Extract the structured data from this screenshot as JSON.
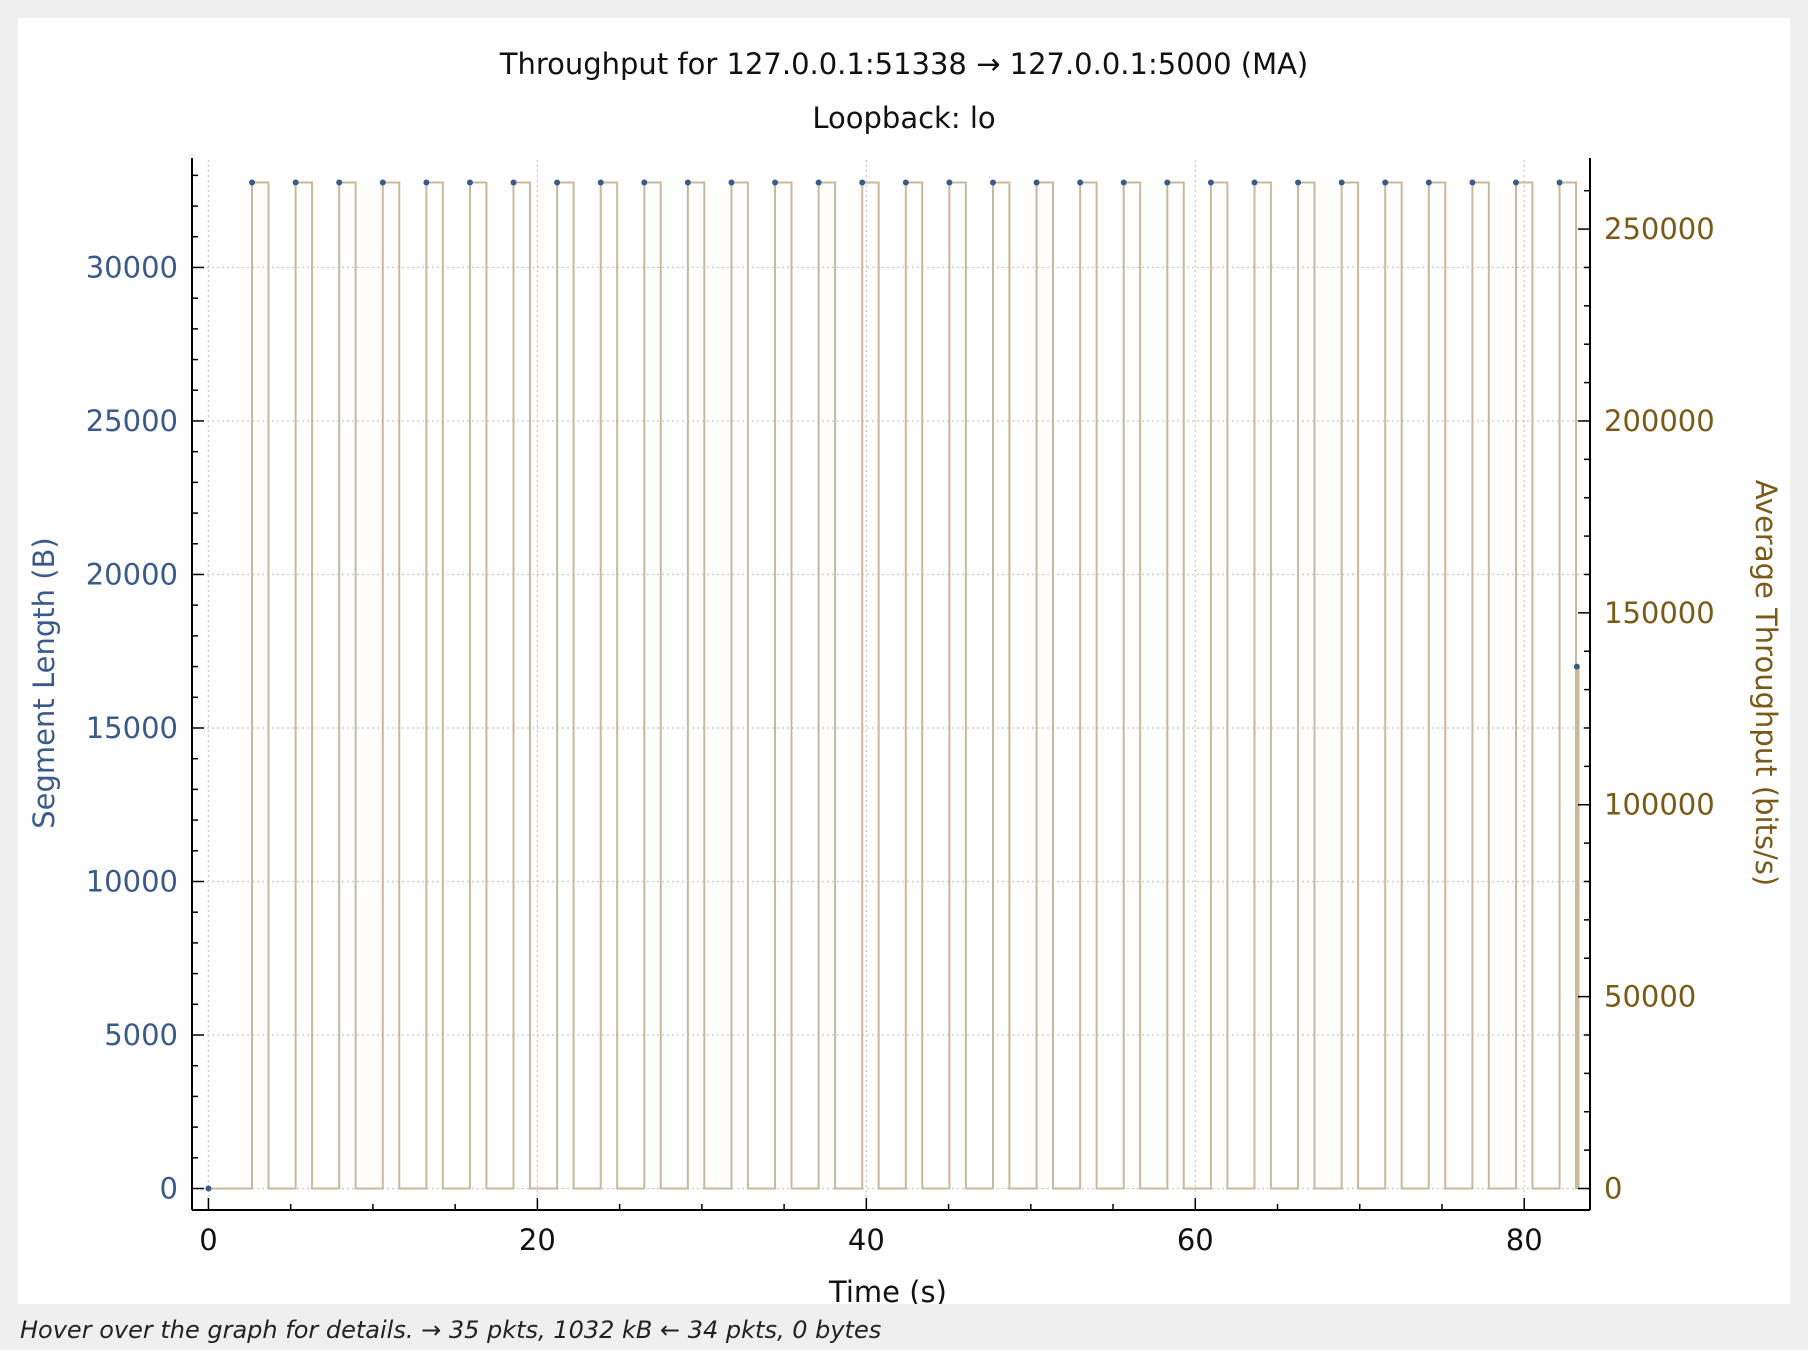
{
  "colors": {
    "segment_series": "#3b5a8c",
    "throughput_series": "#c8b99a",
    "right_axis": "#7a5a17",
    "grid": "#c8c8c8"
  },
  "status": {
    "text": "Hover over the graph for details. → 35 pkts, 1032 kB ← 34 pkts, 0 bytes"
  },
  "chart_data": {
    "type": "line",
    "title": "Throughput for 127.0.0.1:51338 → 127.0.0.1:5000 (MA)",
    "subtitle": "Loopback: lo",
    "xlabel": "Time (s)",
    "ylabel": "Segment Length (B)",
    "ylabel_right": "Average Throughput (bits/s)",
    "xlim": [
      -1,
      84
    ],
    "ylim": [
      -700,
      33500
    ],
    "ylim_right": [
      -5600,
      268000
    ],
    "x_ticks": [
      0,
      20,
      40,
      60,
      80
    ],
    "y_ticks": [
      0,
      5000,
      10000,
      15000,
      20000,
      25000,
      30000
    ],
    "y_ticks_right": [
      0,
      50000,
      100000,
      150000,
      200000,
      250000
    ],
    "grid": true,
    "series": [
      {
        "name": "Segment Length (B)",
        "axis": "left",
        "style": "points",
        "x": [
          0.0,
          2.65,
          5.3,
          7.95,
          10.6,
          13.25,
          15.9,
          18.55,
          21.2,
          23.85,
          26.5,
          29.15,
          31.8,
          34.45,
          37.1,
          39.75,
          42.4,
          45.05,
          47.7,
          50.35,
          53.0,
          55.65,
          58.3,
          60.95,
          63.6,
          66.25,
          68.9,
          71.55,
          74.2,
          76.85,
          79.5,
          82.15,
          83.2
        ],
        "values": [
          0,
          32768,
          32768,
          32768,
          32768,
          32768,
          32768,
          32768,
          32768,
          32768,
          32768,
          32768,
          32768,
          32768,
          32768,
          32768,
          32768,
          32768,
          32768,
          32768,
          32768,
          32768,
          32768,
          32768,
          32768,
          32768,
          32768,
          32768,
          32768,
          32768,
          32768,
          32768,
          17000
        ]
      },
      {
        "name": "Average Throughput (bits/s)",
        "axis": "right",
        "style": "step",
        "pulse_starts": [
          2.65,
          5.3,
          7.95,
          10.6,
          13.25,
          15.9,
          18.55,
          21.2,
          23.85,
          26.5,
          29.15,
          31.8,
          34.45,
          37.1,
          39.75,
          42.4,
          45.05,
          47.7,
          50.35,
          53.0,
          55.65,
          58.3,
          60.95,
          63.6,
          66.25,
          68.9,
          71.55,
          74.2,
          76.85,
          79.5,
          82.15
        ],
        "pulse_width": 1.0,
        "pulse_value": 262144,
        "final_spike_x": 83.2,
        "final_spike_value": 136000,
        "x_start": 0,
        "x_end": 83.3
      }
    ]
  }
}
